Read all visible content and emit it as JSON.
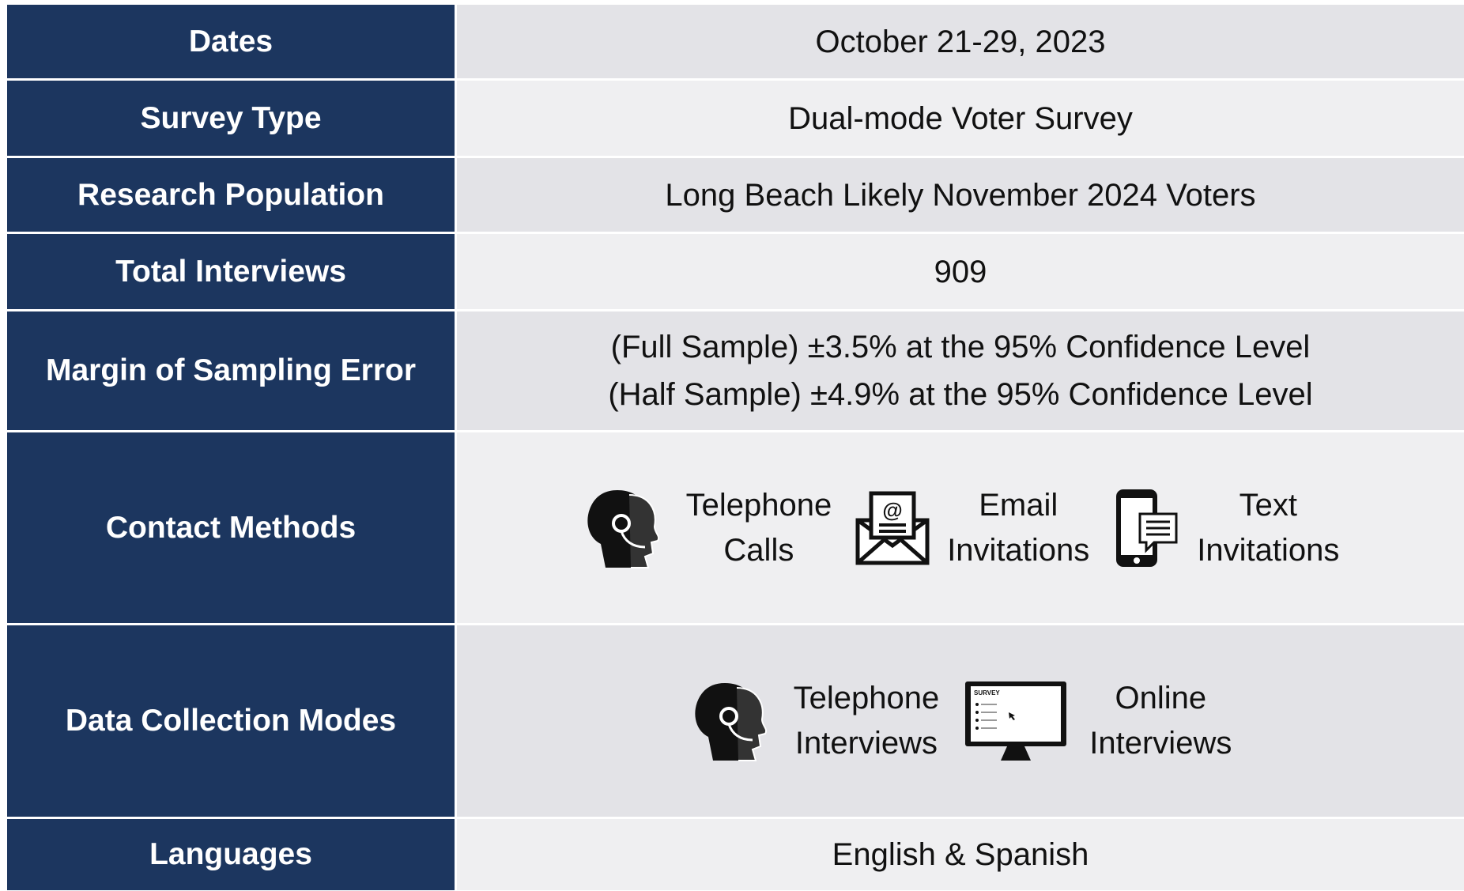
{
  "rows": [
    {
      "label": "Dates",
      "value": "October 21-29, 2023"
    },
    {
      "label": "Survey Type",
      "value": "Dual-mode Voter Survey"
    },
    {
      "label": "Research Population",
      "value": "Long Beach Likely November 2024 Voters"
    },
    {
      "label": "Total Interviews",
      "value": "909"
    },
    {
      "label": "Margin of Sampling Error",
      "lines": [
        "(Full Sample) ±3.5% at the 95% Confidence Level",
        "(Half Sample) ±4.9% at the 95% Confidence Level"
      ]
    },
    {
      "label": "Contact Methods",
      "items": [
        {
          "lines": [
            "Telephone",
            "Calls"
          ]
        },
        {
          "lines": [
            "Email",
            "Invitations"
          ]
        },
        {
          "lines": [
            "Text",
            "Invitations"
          ]
        }
      ]
    },
    {
      "label": "Data Collection Modes",
      "items": [
        {
          "lines": [
            "Telephone",
            "Interviews"
          ]
        },
        {
          "lines": [
            "Online",
            "Interviews"
          ],
          "icon_text": "SURVEY"
        }
      ]
    },
    {
      "label": "Languages",
      "value": "English & Spanish"
    }
  ]
}
